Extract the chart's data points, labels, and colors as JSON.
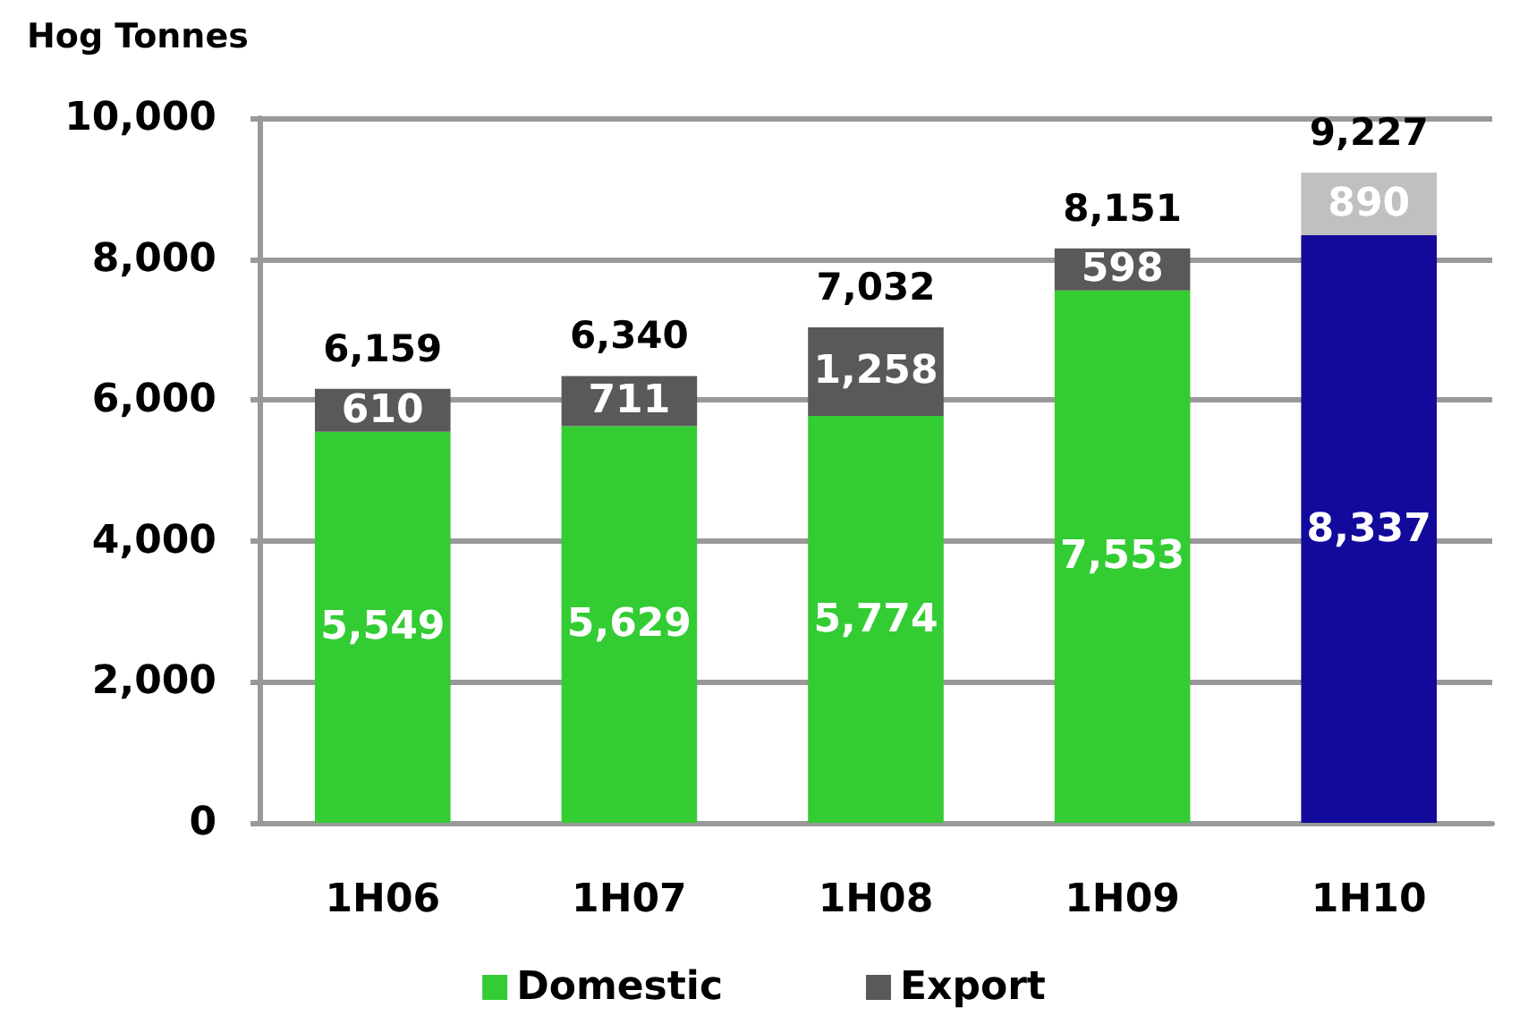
{
  "chart_data": {
    "type": "bar",
    "ylabel": "Hog Tonnes",
    "categories": [
      "1H06",
      "1H07",
      "1H08",
      "1H09",
      "1H10"
    ],
    "stacked": true,
    "series": [
      {
        "name": "Domestic",
        "color": "#33cc33",
        "colors": [
          "#33cc33",
          "#33cc33",
          "#33cc33",
          "#33cc33",
          "#130a9c"
        ],
        "values": [
          5549,
          5629,
          5774,
          7553,
          8337
        ],
        "value_labels": [
          "5,549",
          "5,629",
          "5,774",
          "7,553",
          "8,337"
        ]
      },
      {
        "name": "Export",
        "color": "#595959",
        "colors": [
          "#595959",
          "#595959",
          "#595959",
          "#595959",
          "#c0c0c0"
        ],
        "values": [
          610,
          711,
          1258,
          598,
          890
        ],
        "value_labels": [
          "610",
          "711",
          "1,258",
          "598",
          "890"
        ]
      }
    ],
    "totals": [
      "6,159",
      "6,340",
      "7,032",
      "8,151",
      "9,227"
    ],
    "ylim": [
      0,
      10000
    ],
    "yticks": [
      0,
      {
        "value": 2000,
        "label": "2,000"
      },
      {
        "value": 4000,
        "label": "4,000"
      },
      {
        "value": 6000,
        "label": "6,000"
      },
      {
        "value": 8000,
        "label": "8,000"
      },
      {
        "value": 10000,
        "label": "10,000"
      }
    ],
    "grid": "y",
    "legend": "bottom"
  }
}
